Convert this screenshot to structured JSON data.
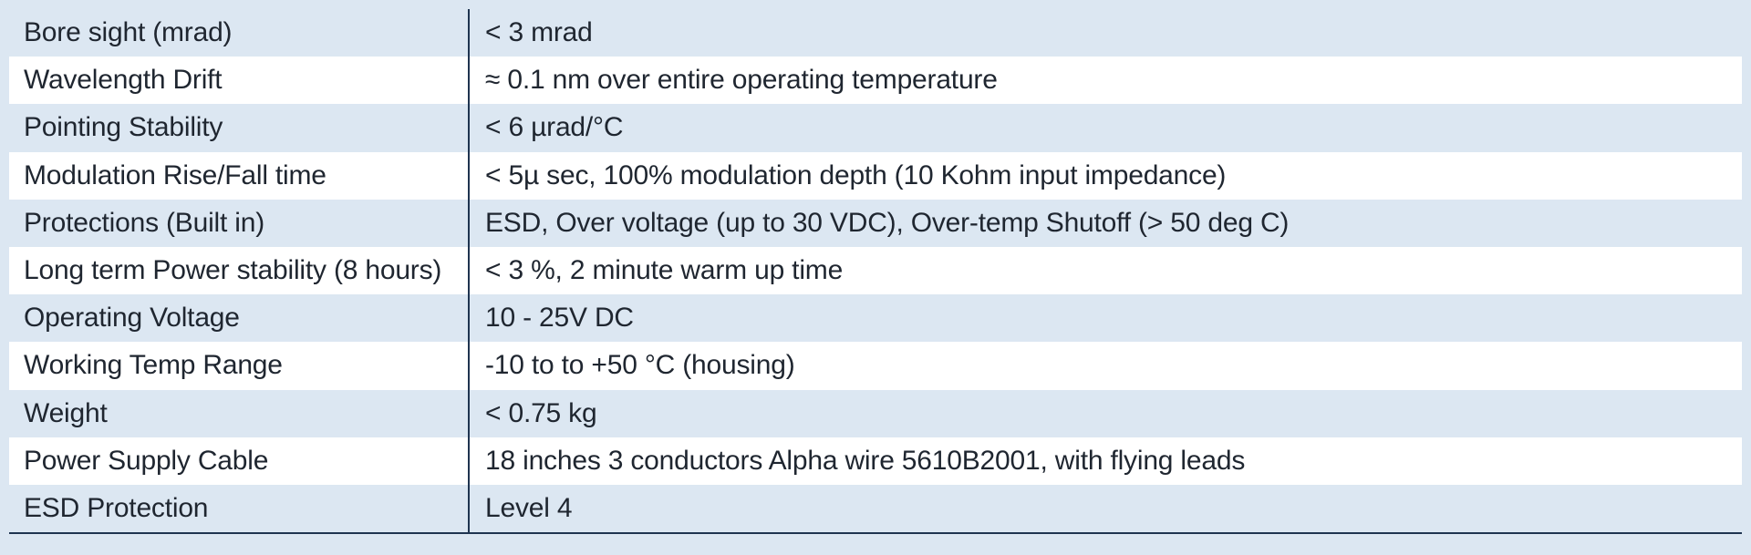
{
  "specs": [
    {
      "label": "Bore sight (mrad)",
      "value": "< 3 mrad"
    },
    {
      "label": "Wavelength Drift",
      "value": "≈ 0.1 nm over entire operating temperature"
    },
    {
      "label": "Pointing Stability",
      "value": "< 6 µrad/°C"
    },
    {
      "label": "Modulation Rise/Fall time",
      "value": "< 5µ sec, 100% modulation depth (10 Kohm input impedance)"
    },
    {
      "label": "Protections (Built in)",
      "value": "ESD, Over voltage (up to 30 VDC), Over-temp Shutoff (> 50 deg C)"
    },
    {
      "label": "Long term Power stability (8 hours)",
      "value": "< 3 %, 2 minute warm up time"
    },
    {
      "label": "Operating Voltage",
      "value": "10 - 25V DC"
    },
    {
      "label": "Working Temp Range",
      "value": "-10 to to +50 °C (housing)"
    },
    {
      "label": "Weight",
      "value": "< 0.75 kg"
    },
    {
      "label": "Power Supply Cable",
      "value": "18 inches 3 conductors Alpha wire 5610B2001, with flying leads"
    },
    {
      "label": "ESD Protection",
      "value": "Level 4"
    }
  ]
}
